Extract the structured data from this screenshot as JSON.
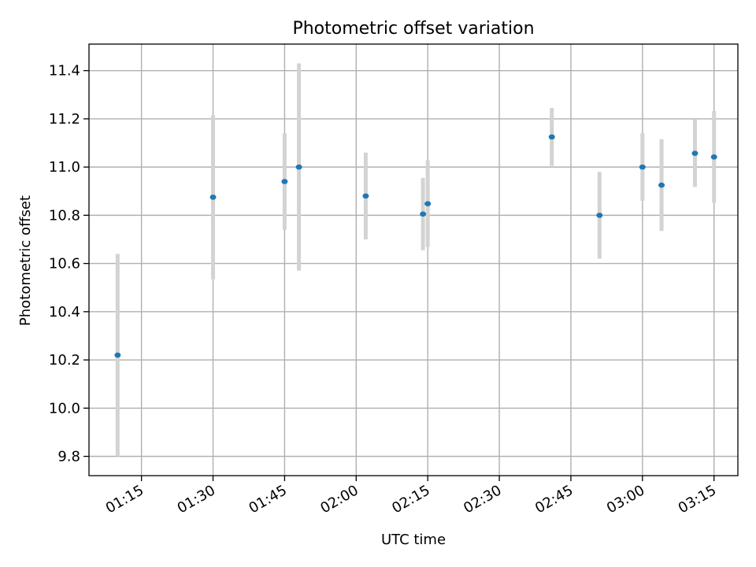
{
  "chart_data": {
    "type": "scatter",
    "title": "Photometric offset variation",
    "xlabel": "UTC time",
    "ylabel": "Photometric offset",
    "x_axis_kind": "time",
    "xlim": [
      "01:04",
      "03:20"
    ],
    "ylim": [
      9.72,
      11.51
    ],
    "grid": true,
    "x_ticks": [
      "01:15",
      "01:30",
      "01:45",
      "02:00",
      "02:15",
      "02:30",
      "02:45",
      "03:00",
      "03:15"
    ],
    "y_ticks": [
      9.8,
      10.0,
      10.2,
      10.4,
      10.6,
      10.8,
      11.0,
      11.2,
      11.4
    ],
    "y_tick_labels": [
      "9.8",
      "10.0",
      "10.2",
      "10.4",
      "10.6",
      "10.8",
      "11.0",
      "11.2",
      "11.4"
    ],
    "series": [
      {
        "points": [
          {
            "x": "01:10",
            "y": 10.22,
            "err": 0.42
          },
          {
            "x": "01:30",
            "y": 10.875,
            "err": 0.34
          },
          {
            "x": "01:45",
            "y": 10.94,
            "err": 0.2
          },
          {
            "x": "01:48",
            "y": 11.0,
            "err": 0.43
          },
          {
            "x": "02:02",
            "y": 10.88,
            "err": 0.18
          },
          {
            "x": "02:14",
            "y": 10.805,
            "err": 0.15
          },
          {
            "x": "02:15",
            "y": 10.848,
            "err": 0.18
          },
          {
            "x": "02:41",
            "y": 11.125,
            "err": 0.12
          },
          {
            "x": "02:51",
            "y": 10.8,
            "err": 0.18
          },
          {
            "x": "03:00",
            "y": 11.0,
            "err": 0.14
          },
          {
            "x": "03:04",
            "y": 10.925,
            "err": 0.19
          },
          {
            "x": "03:11",
            "y": 11.057,
            "err": 0.14
          },
          {
            "x": "03:15",
            "y": 11.042,
            "err": 0.19
          }
        ]
      }
    ],
    "colors": {
      "marker": "#1f77b4",
      "errorbar": "#d3d3d3",
      "grid": "#b0b0b0",
      "axes": "#000000"
    }
  }
}
